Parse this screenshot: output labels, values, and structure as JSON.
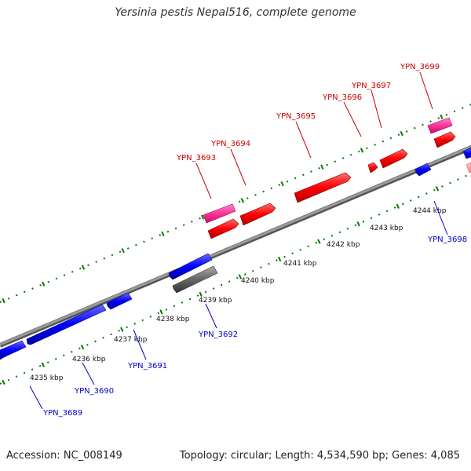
{
  "title": "Yersinia pestis Nepal516, complete genome",
  "footer": {
    "accession": "Accession: NC_008149",
    "summary": "Topology: circular; Length: 4,534,590 bp; Genes: 4,085"
  },
  "colors": {
    "forward": "#ff0000",
    "forward_alt": "#ff3399",
    "reverse": "#0000ff",
    "other": "#666666",
    "backbone": "#888888",
    "ticks": "#007700"
  },
  "scale_labels": [
    "4235 kbp",
    "4236 kbp",
    "4237 kbp",
    "4238 kbp",
    "4239 kbp",
    "4240 kbp",
    "4241 kbp",
    "4242 kbp",
    "4243 kbp",
    "4244 kbp"
  ],
  "genes_forward": [
    "YPN_3693",
    "YPN_3694",
    "YPN_3695",
    "YPN_3696",
    "YPN_3697",
    "YPN_3699"
  ],
  "genes_reverse": [
    "YPN_3689",
    "YPN_3690",
    "YPN_3691",
    "YPN_3692",
    "YPN_3698"
  ]
}
